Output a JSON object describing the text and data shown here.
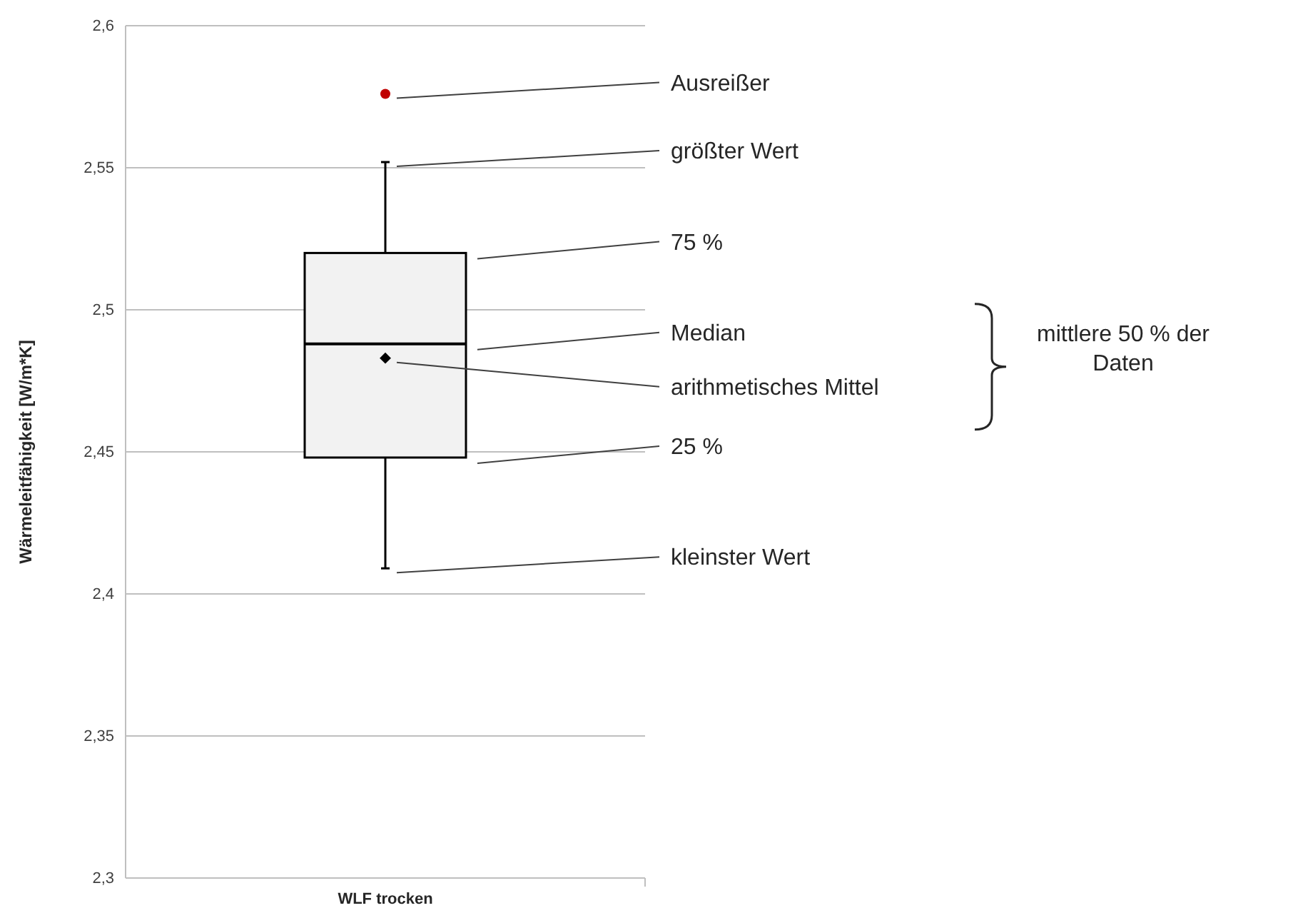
{
  "chart_data": {
    "type": "box",
    "ylabel": "Wärmeleitfähigkeit [W/m*K]",
    "categories": [
      "WLF trocken"
    ],
    "color": "#f2f2f2",
    "boxes": [
      {
        "low": 2.409,
        "q1": 2.448,
        "median": 2.488,
        "q3": 2.52,
        "high": 2.552,
        "mean": 2.483,
        "outliers": [
          2.576
        ]
      }
    ],
    "ylim": [
      2.3,
      2.6
    ],
    "yticks": [
      {
        "value": 2.3,
        "label": "2,3"
      },
      {
        "value": 2.35,
        "label": "2,35"
      },
      {
        "value": 2.4,
        "label": "2,4"
      },
      {
        "value": 2.45,
        "label": "2,45"
      },
      {
        "value": 2.5,
        "label": "2,5"
      },
      {
        "value": 2.55,
        "label": "2,55"
      },
      {
        "value": 2.6,
        "label": "2,6"
      }
    ],
    "grid": "y",
    "annotations": [
      "Ausreißer",
      "größter Wert",
      "75 %",
      "Median",
      "arithmetisches Mittel",
      "25 %",
      "kleinster Wert",
      "mittlere 50 % der Daten"
    ]
  }
}
